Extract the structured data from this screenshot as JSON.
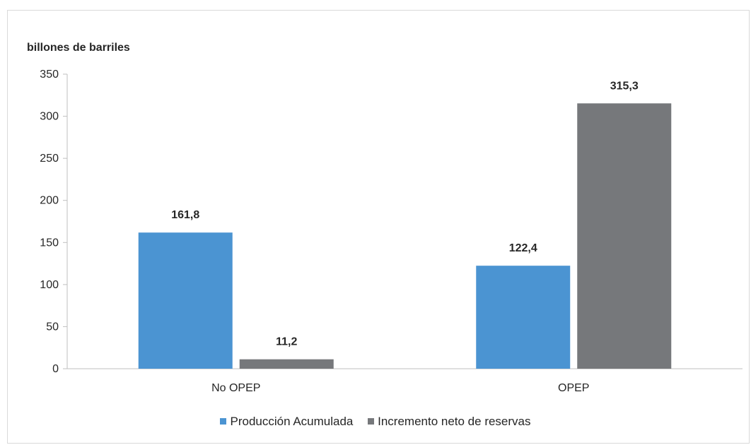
{
  "chart_data": {
    "type": "bar",
    "ylabel": "billones de barriles",
    "ylim": [
      0,
      350
    ],
    "yticks": [
      0,
      50,
      100,
      150,
      200,
      250,
      300,
      350
    ],
    "categories": [
      "No OPEP",
      "OPEP"
    ],
    "series": [
      {
        "name": "Producción Acumulada",
        "values": [
          161.8,
          122.4
        ],
        "labels": [
          "161,8",
          "122,4"
        ],
        "color": "#4b94d2"
      },
      {
        "name": "Incremento neto de reservas",
        "values": [
          11.2,
          315.3
        ],
        "labels": [
          "11,2",
          "315,3"
        ],
        "color": "#76787b"
      }
    ],
    "grid": false,
    "legend_position": "bottom"
  }
}
